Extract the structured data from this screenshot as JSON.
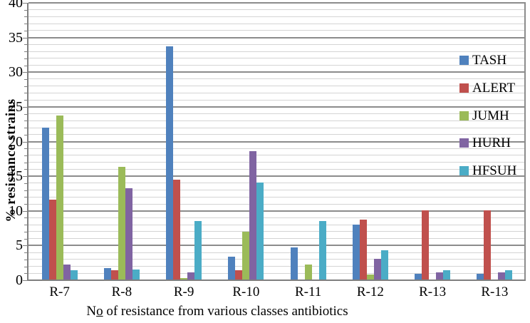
{
  "chart_data": {
    "type": "bar",
    "title": "",
    "ylabel": "% resistance strains",
    "xlabel": "No of resistance from various classes antibiotics",
    "xlabel_parts": {
      "prefix": "N",
      "underlined": "o",
      "rest": " of resistance from various classes antibiotics"
    },
    "ylim": [
      0,
      40
    ],
    "y_major_step": 5,
    "y_minor_step": 1,
    "y_tick_labels": [
      "0",
      "5",
      "10",
      "15",
      "20",
      "25",
      "30",
      "35",
      "40"
    ],
    "grid": "horizontal minor and major gridlines on",
    "legend_position": "right inside plot area",
    "categories": [
      "R-7",
      "R-8",
      "R-9",
      "R-10",
      "R-11",
      "R-12",
      "R-13",
      "R-13"
    ],
    "series": [
      {
        "name": "TASH",
        "color": "#4F81BD",
        "values": [
          22.0,
          1.8,
          33.7,
          3.4,
          4.7,
          8.0,
          0.9,
          0.9
        ]
      },
      {
        "name": "ALERT",
        "color": "#C0504D",
        "values": [
          11.6,
          1.4,
          14.5,
          1.4,
          0,
          8.7,
          10.1,
          10.1
        ]
      },
      {
        "name": "JUMH",
        "color": "#9BBB59",
        "values": [
          23.8,
          16.3,
          0.3,
          7.0,
          2.3,
          0.8,
          0,
          0
        ]
      },
      {
        "name": "HURH",
        "color": "#8064A2",
        "values": [
          2.3,
          13.3,
          1.1,
          18.6,
          0,
          3.1,
          1.1,
          1.1
        ]
      },
      {
        "name": "HFSUH",
        "color": "#4BACC6",
        "values": [
          1.4,
          1.5,
          8.5,
          14.1,
          8.5,
          4.3,
          1.4,
          1.4
        ]
      }
    ]
  },
  "colors": {
    "background": "#FFFFFF",
    "minor_gridline": "#D4D4D4",
    "major_gridline": "#8C8C8C",
    "axis": "#7F7F7F",
    "text": "#000000"
  }
}
